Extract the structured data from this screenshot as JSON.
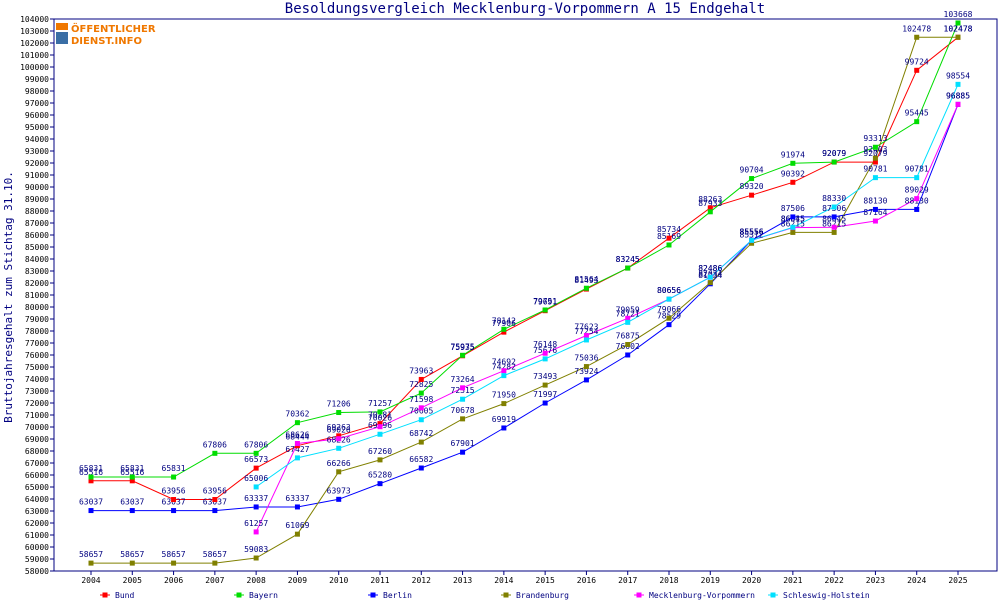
{
  "chart_data": {
    "type": "line",
    "title": "Besoldungsvergleich Mecklenburg-Vorpommern A 15 Endgehalt",
    "ylabel": "Bruttojahresgehalt zum Stichtag 31.10.",
    "xlabel": "",
    "logo": {
      "line1": "ÖFFENTLICHER",
      "line2": "DIENST.INFO",
      "color": "#f07800"
    },
    "ylim": [
      58000,
      104000
    ],
    "ytick_step": 1000,
    "grid": false,
    "legend_position": "bottom",
    "x": [
      "2004",
      "2005",
      "2006",
      "2007",
      "2008",
      "2009",
      "2010",
      "2011",
      "2012",
      "2013",
      "2014",
      "2015",
      "2016",
      "2017",
      "2018",
      "2019",
      "2020",
      "2021",
      "2022",
      "2023",
      "2024",
      "2025"
    ],
    "series": [
      {
        "name": "Bund",
        "color": "#ff0000",
        "values": [
          65516,
          65516,
          63956,
          63956,
          66573,
          68444,
          69263,
          70281,
          73963,
          75935,
          77906,
          79691,
          81493,
          83245,
          85734,
          88263,
          89320,
          90392,
          92079,
          92079,
          99724,
          102478
        ]
      },
      {
        "name": "Bayern",
        "color": "#00dd00",
        "values": [
          65831,
          65831,
          65831,
          67806,
          67806,
          70362,
          71206,
          71257,
          72825,
          75975,
          78142,
          79751,
          81564,
          83245,
          85169,
          87933,
          90704,
          91974,
          92079,
          93313,
          95445,
          103668
        ]
      },
      {
        "name": "Berlin",
        "color": "#0000ff",
        "values": [
          63037,
          63037,
          63037,
          63037,
          63337,
          63337,
          63973,
          65280,
          66582,
          67901,
          69919,
          71997,
          73924,
          76002,
          78529,
          81934,
          85556,
          87506,
          87506,
          88130,
          88130,
          96885
        ]
      },
      {
        "name": "Brandenburg",
        "color": "#808000",
        "values": [
          58657,
          58657,
          58657,
          58657,
          59083,
          61069,
          66266,
          67260,
          68742,
          70678,
          71950,
          73493,
          75036,
          76875,
          79066,
          82034,
          85312,
          86215,
          86215,
          92403,
          102478,
          102478
        ]
      },
      {
        "name": "Mecklenburg-Vorpommern",
        "color": "#ff00ff",
        "values": [
          null,
          null,
          null,
          null,
          61257,
          68626,
          69026,
          70026,
          71598,
          73264,
          74692,
          76148,
          77623,
          79059,
          80656,
          82486,
          85556,
          86615,
          86645,
          87164,
          89029,
          96885
        ]
      },
      {
        "name": "Schleswig-Holstein",
        "color": "#00e0ff",
        "values": [
          null,
          null,
          null,
          null,
          65006,
          67427,
          68226,
          69396,
          70605,
          72315,
          74282,
          75676,
          77254,
          78721,
          80656,
          82486,
          85556,
          86645,
          88330,
          90781,
          90781,
          98554
        ]
      }
    ]
  }
}
